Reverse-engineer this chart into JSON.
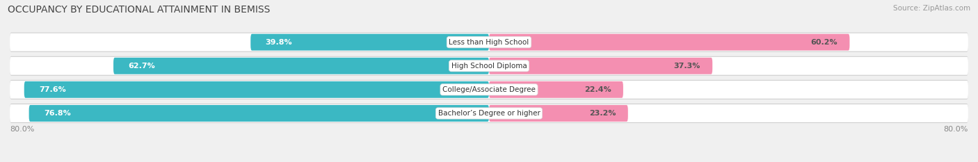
{
  "title": "OCCUPANCY BY EDUCATIONAL ATTAINMENT IN BEMISS",
  "source": "Source: ZipAtlas.com",
  "categories": [
    "Less than High School",
    "High School Diploma",
    "College/Associate Degree",
    "Bachelor’s Degree or higher"
  ],
  "owner_values": [
    39.8,
    62.7,
    77.6,
    76.8
  ],
  "renter_values": [
    60.2,
    37.3,
    22.4,
    23.2
  ],
  "owner_color": "#3BB8C3",
  "renter_color": "#F48FB1",
  "background_color": "#F0F0F0",
  "bar_bg_color": "#E8E8E8",
  "bar_bg_inner": "#FFFFFF",
  "xlim_left": -80.0,
  "xlim_right": 80.0,
  "title_fontsize": 10,
  "source_fontsize": 7.5,
  "value_fontsize": 8,
  "cat_fontsize": 7.5,
  "legend_fontsize": 8,
  "bar_height": 0.7
}
